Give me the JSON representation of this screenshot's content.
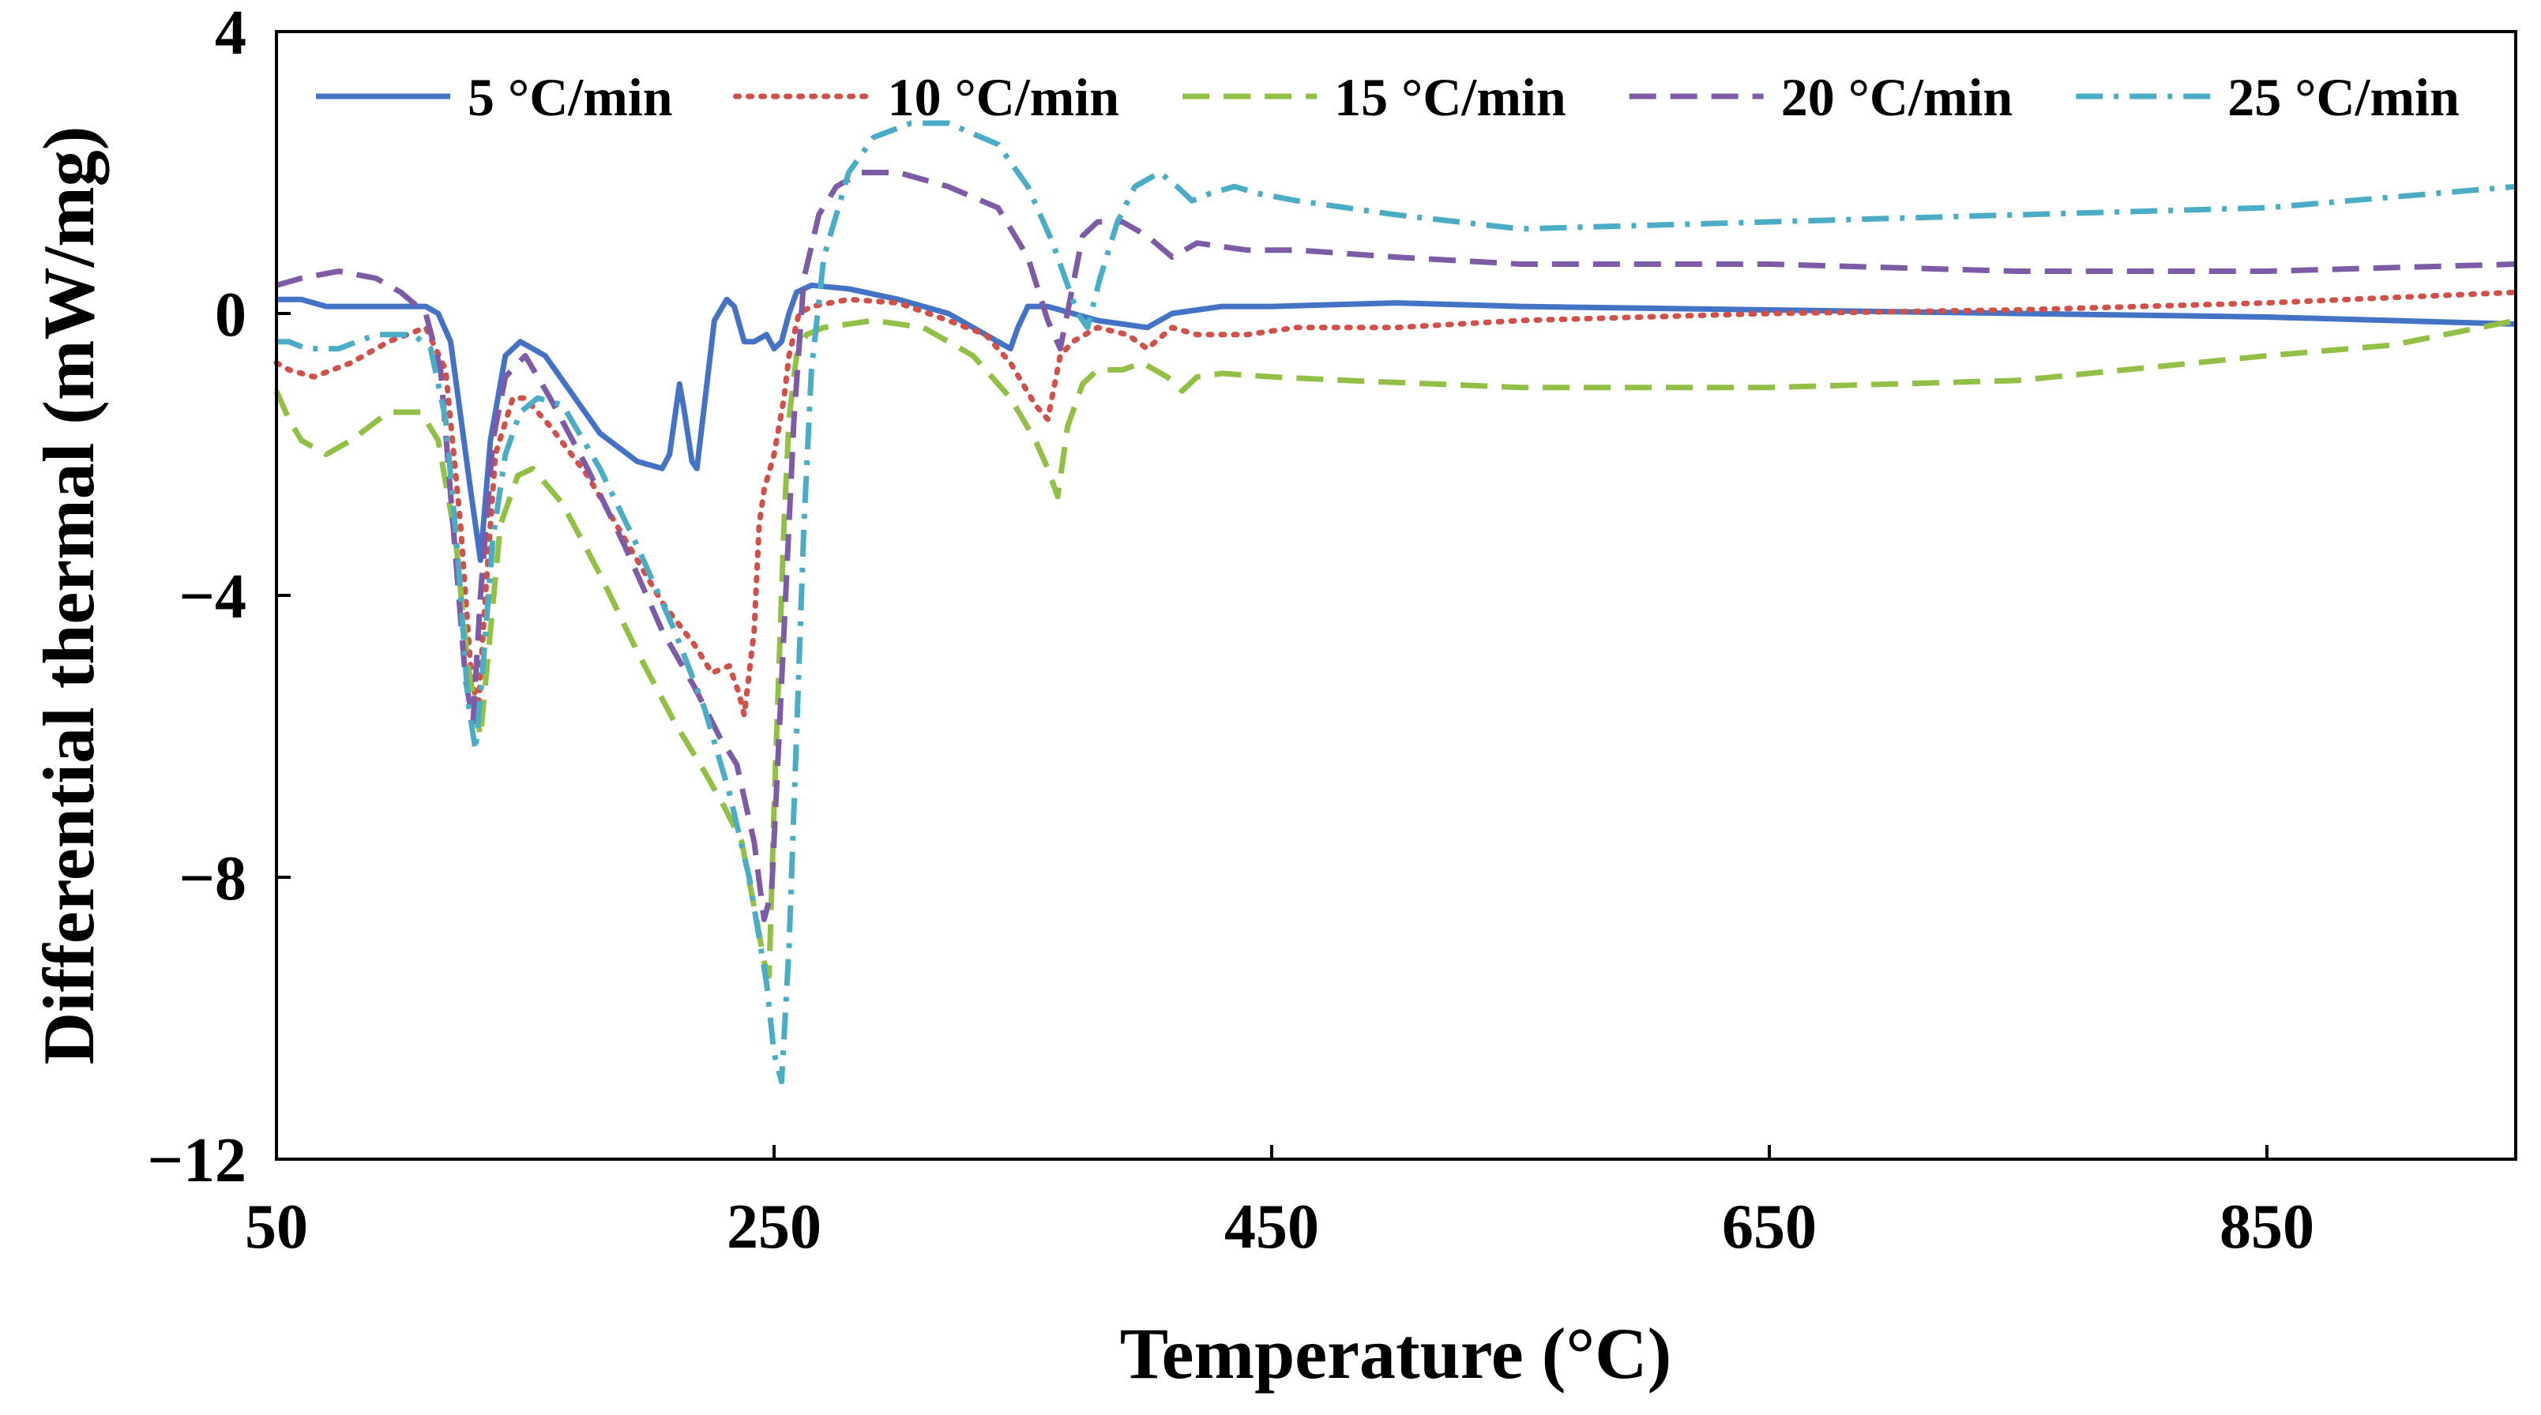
{
  "chart_data": {
    "type": "line",
    "title": "",
    "xlabel": "Temperature (°C)",
    "ylabel": "Differential thermal (mW/mg)",
    "xlim": [
      50,
      950
    ],
    "ylim": [
      -12,
      4
    ],
    "x_ticks": [
      50,
      250,
      450,
      650,
      850
    ],
    "x_tick_labels": [
      "50",
      "250",
      "450",
      "650",
      "850"
    ],
    "y_ticks": [
      4,
      0,
      -4,
      -8,
      -12
    ],
    "y_tick_labels": [
      "4",
      "0",
      "−4",
      "−8",
      "−12"
    ],
    "grid": false,
    "legend": "top",
    "series": [
      {
        "name": "5 °C/min",
        "color": "#4472C4",
        "dash": "solid",
        "points": [
          [
            50,
            0.2
          ],
          [
            60,
            0.2
          ],
          [
            70,
            0.1
          ],
          [
            85,
            0.1
          ],
          [
            110,
            0.1
          ],
          [
            115,
            0.0
          ],
          [
            120,
            -0.4
          ],
          [
            128,
            -2.5
          ],
          [
            132,
            -3.5
          ],
          [
            136,
            -1.8
          ],
          [
            142,
            -0.6
          ],
          [
            148,
            -0.4
          ],
          [
            158,
            -0.6
          ],
          [
            168,
            -1.1
          ],
          [
            180,
            -1.7
          ],
          [
            195,
            -2.1
          ],
          [
            205,
            -2.2
          ],
          [
            208,
            -2.0
          ],
          [
            212,
            -1.0
          ],
          [
            214,
            -1.4
          ],
          [
            217,
            -2.1
          ],
          [
            219,
            -2.2
          ],
          [
            222,
            -1.3
          ],
          [
            226,
            -0.1
          ],
          [
            231,
            0.2
          ],
          [
            234,
            0.1
          ],
          [
            238,
            -0.4
          ],
          [
            242,
            -0.4
          ],
          [
            247,
            -0.3
          ],
          [
            250,
            -0.5
          ],
          [
            253,
            -0.4
          ],
          [
            256,
            0.0
          ],
          [
            259,
            0.3
          ],
          [
            265,
            0.4
          ],
          [
            280,
            0.35
          ],
          [
            300,
            0.2
          ],
          [
            320,
            0.0
          ],
          [
            340,
            -0.4
          ],
          [
            345,
            -0.5
          ],
          [
            348,
            -0.2
          ],
          [
            352,
            0.1
          ],
          [
            360,
            0.1
          ],
          [
            380,
            -0.1
          ],
          [
            400,
            -0.2
          ],
          [
            410,
            0.0
          ],
          [
            430,
            0.1
          ],
          [
            450,
            0.1
          ],
          [
            500,
            0.15
          ],
          [
            550,
            0.1
          ],
          [
            650,
            0.05
          ],
          [
            750,
            0.0
          ],
          [
            850,
            -0.05
          ],
          [
            900,
            -0.1
          ],
          [
            950,
            -0.15
          ]
        ]
      },
      {
        "name": "10 °C/min",
        "color": "#D0504A",
        "dash": "dotted",
        "points": [
          [
            50,
            -0.7
          ],
          [
            55,
            -0.8
          ],
          [
            65,
            -0.9
          ],
          [
            80,
            -0.7
          ],
          [
            95,
            -0.4
          ],
          [
            110,
            -0.2
          ],
          [
            118,
            -0.8
          ],
          [
            124,
            -3.0
          ],
          [
            128,
            -5.0
          ],
          [
            131,
            -5.7
          ],
          [
            134,
            -4.0
          ],
          [
            138,
            -2.0
          ],
          [
            145,
            -1.2
          ],
          [
            150,
            -1.2
          ],
          [
            160,
            -1.6
          ],
          [
            175,
            -2.3
          ],
          [
            190,
            -3.2
          ],
          [
            205,
            -4.1
          ],
          [
            218,
            -4.7
          ],
          [
            225,
            -5.1
          ],
          [
            232,
            -5.0
          ],
          [
            236,
            -5.4
          ],
          [
            238,
            -5.7
          ],
          [
            242,
            -4.5
          ],
          [
            244,
            -3.0
          ],
          [
            246,
            -2.5
          ],
          [
            250,
            -2.0
          ],
          [
            254,
            -1.2
          ],
          [
            256,
            -0.6
          ],
          [
            260,
            0.0
          ],
          [
            265,
            0.1
          ],
          [
            280,
            0.2
          ],
          [
            300,
            0.15
          ],
          [
            320,
            -0.1
          ],
          [
            335,
            -0.3
          ],
          [
            345,
            -0.7
          ],
          [
            355,
            -1.3
          ],
          [
            360,
            -1.5
          ],
          [
            365,
            -0.6
          ],
          [
            370,
            -0.4
          ],
          [
            380,
            -0.2
          ],
          [
            392,
            -0.3
          ],
          [
            400,
            -0.5
          ],
          [
            410,
            -0.2
          ],
          [
            420,
            -0.3
          ],
          [
            440,
            -0.3
          ],
          [
            460,
            -0.2
          ],
          [
            500,
            -0.2
          ],
          [
            550,
            -0.1
          ],
          [
            650,
            0.0
          ],
          [
            750,
            0.05
          ],
          [
            850,
            0.15
          ],
          [
            950,
            0.3
          ]
        ]
      },
      {
        "name": "15 °C/min",
        "color": "#92C047",
        "dash": "dashed",
        "points": [
          [
            50,
            -1.1
          ],
          [
            55,
            -1.5
          ],
          [
            60,
            -1.8
          ],
          [
            70,
            -2.0
          ],
          [
            80,
            -1.8
          ],
          [
            95,
            -1.4
          ],
          [
            108,
            -1.4
          ],
          [
            115,
            -1.8
          ],
          [
            122,
            -3.2
          ],
          [
            127,
            -5.0
          ],
          [
            132,
            -6.0
          ],
          [
            136,
            -4.5
          ],
          [
            140,
            -3.0
          ],
          [
            147,
            -2.3
          ],
          [
            153,
            -2.2
          ],
          [
            165,
            -2.7
          ],
          [
            180,
            -3.7
          ],
          [
            195,
            -4.8
          ],
          [
            210,
            -5.8
          ],
          [
            222,
            -6.5
          ],
          [
            230,
            -7.0
          ],
          [
            237,
            -7.5
          ],
          [
            243,
            -8.6
          ],
          [
            246,
            -9.2
          ],
          [
            248,
            -9.4
          ],
          [
            250,
            -7.0
          ],
          [
            252,
            -5.0
          ],
          [
            254,
            -3.0
          ],
          [
            256,
            -1.5
          ],
          [
            259,
            -0.6
          ],
          [
            263,
            -0.3
          ],
          [
            270,
            -0.2
          ],
          [
            290,
            -0.1
          ],
          [
            310,
            -0.2
          ],
          [
            330,
            -0.6
          ],
          [
            345,
            -1.2
          ],
          [
            355,
            -1.8
          ],
          [
            360,
            -2.2
          ],
          [
            364,
            -2.6
          ],
          [
            368,
            -1.6
          ],
          [
            374,
            -1.0
          ],
          [
            380,
            -0.8
          ],
          [
            390,
            -0.8
          ],
          [
            398,
            -0.7
          ],
          [
            408,
            -0.9
          ],
          [
            414,
            -1.1
          ],
          [
            420,
            -0.9
          ],
          [
            430,
            -0.85
          ],
          [
            450,
            -0.9
          ],
          [
            480,
            -0.95
          ],
          [
            550,
            -1.05
          ],
          [
            650,
            -1.05
          ],
          [
            750,
            -0.95
          ],
          [
            850,
            -0.6
          ],
          [
            900,
            -0.45
          ],
          [
            950,
            -0.1
          ]
        ]
      },
      {
        "name": "20 °C/min",
        "color": "#7D5BA6",
        "dash": "dashed",
        "points": [
          [
            50,
            0.4
          ],
          [
            60,
            0.5
          ],
          [
            75,
            0.6
          ],
          [
            90,
            0.5
          ],
          [
            100,
            0.3
          ],
          [
            110,
            0.0
          ],
          [
            116,
            -0.8
          ],
          [
            121,
            -3.0
          ],
          [
            126,
            -5.2
          ],
          [
            129,
            -5.8
          ],
          [
            132,
            -4.0
          ],
          [
            137,
            -1.8
          ],
          [
            142,
            -0.9
          ],
          [
            150,
            -0.6
          ],
          [
            160,
            -1.2
          ],
          [
            175,
            -2.2
          ],
          [
            190,
            -3.3
          ],
          [
            205,
            -4.5
          ],
          [
            218,
            -5.3
          ],
          [
            228,
            -6.0
          ],
          [
            235,
            -6.4
          ],
          [
            242,
            -7.5
          ],
          [
            246,
            -8.6
          ],
          [
            249,
            -8.2
          ],
          [
            252,
            -6.0
          ],
          [
            254,
            -4.5
          ],
          [
            256,
            -3.0
          ],
          [
            258,
            -1.5
          ],
          [
            262,
            0.5
          ],
          [
            268,
            1.4
          ],
          [
            275,
            1.8
          ],
          [
            285,
            2.0
          ],
          [
            300,
            2.0
          ],
          [
            320,
            1.8
          ],
          [
            340,
            1.5
          ],
          [
            352,
            0.8
          ],
          [
            360,
            -0.1
          ],
          [
            365,
            -0.5
          ],
          [
            369,
            0.2
          ],
          [
            374,
            1.1
          ],
          [
            380,
            1.3
          ],
          [
            390,
            1.3
          ],
          [
            400,
            1.1
          ],
          [
            410,
            0.8
          ],
          [
            420,
            1.0
          ],
          [
            440,
            0.9
          ],
          [
            460,
            0.9
          ],
          [
            500,
            0.8
          ],
          [
            550,
            0.7
          ],
          [
            650,
            0.7
          ],
          [
            750,
            0.6
          ],
          [
            850,
            0.6
          ],
          [
            950,
            0.7
          ]
        ]
      },
      {
        "name": "25 °C/min",
        "color": "#4BACC6",
        "dash": "dashdot",
        "points": [
          [
            50,
            -0.4
          ],
          [
            55,
            -0.4
          ],
          [
            62,
            -0.5
          ],
          [
            75,
            -0.5
          ],
          [
            90,
            -0.3
          ],
          [
            105,
            -0.3
          ],
          [
            112,
            -0.5
          ],
          [
            118,
            -1.5
          ],
          [
            123,
            -3.5
          ],
          [
            127,
            -5.5
          ],
          [
            130,
            -6.2
          ],
          [
            133,
            -5.0
          ],
          [
            137,
            -3.2
          ],
          [
            142,
            -2.0
          ],
          [
            148,
            -1.4
          ],
          [
            155,
            -1.2
          ],
          [
            165,
            -1.3
          ],
          [
            180,
            -2.2
          ],
          [
            195,
            -3.3
          ],
          [
            210,
            -4.5
          ],
          [
            222,
            -5.6
          ],
          [
            232,
            -6.8
          ],
          [
            240,
            -8.0
          ],
          [
            247,
            -9.5
          ],
          [
            250,
            -10.5
          ],
          [
            253,
            -10.9
          ],
          [
            256,
            -9.0
          ],
          [
            259,
            -6.0
          ],
          [
            262,
            -3.0
          ],
          [
            265,
            -0.8
          ],
          [
            270,
            0.8
          ],
          [
            280,
            2.0
          ],
          [
            290,
            2.5
          ],
          [
            305,
            2.7
          ],
          [
            320,
            2.7
          ],
          [
            340,
            2.4
          ],
          [
            352,
            1.8
          ],
          [
            362,
            1.0
          ],
          [
            372,
            0.0
          ],
          [
            376,
            -0.2
          ],
          [
            381,
            0.5
          ],
          [
            388,
            1.3
          ],
          [
            395,
            1.8
          ],
          [
            405,
            2.0
          ],
          [
            412,
            1.8
          ],
          [
            418,
            1.6
          ],
          [
            425,
            1.7
          ],
          [
            435,
            1.8
          ],
          [
            445,
            1.7
          ],
          [
            460,
            1.6
          ],
          [
            500,
            1.4
          ],
          [
            550,
            1.2
          ],
          [
            650,
            1.3
          ],
          [
            750,
            1.4
          ],
          [
            850,
            1.5
          ],
          [
            950,
            1.8
          ]
        ]
      }
    ]
  }
}
